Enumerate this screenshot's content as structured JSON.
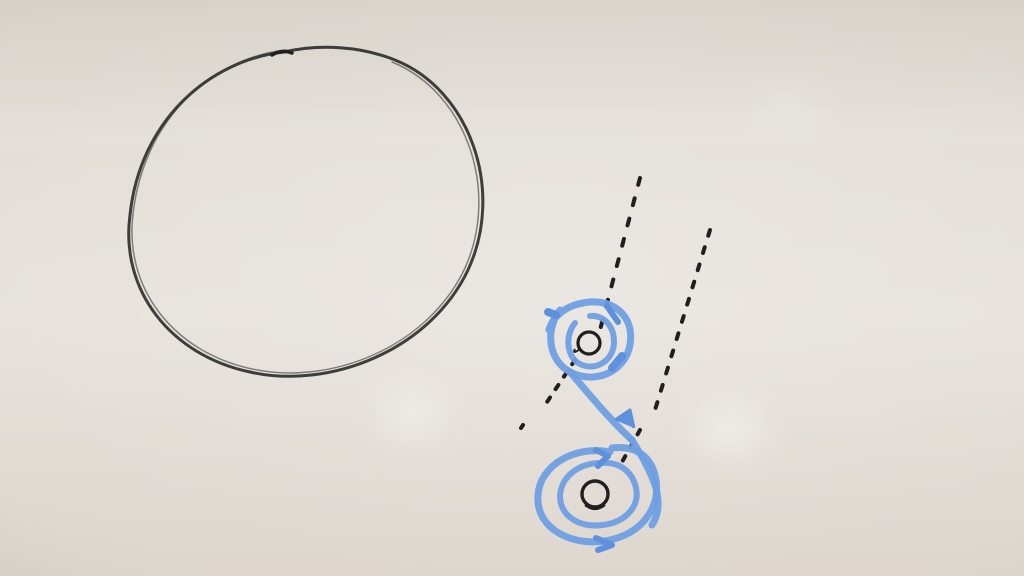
{
  "image": {
    "subject": "whiteboard",
    "colors": {
      "board_light": "#e9e5df",
      "board_mid": "#ddd7cf",
      "board_dark": "#cfc8bf",
      "marker_black": "#2a2a2a",
      "marker_blue": "#6f9fe3",
      "marker_blue_dark": "#4f82d2"
    }
  }
}
